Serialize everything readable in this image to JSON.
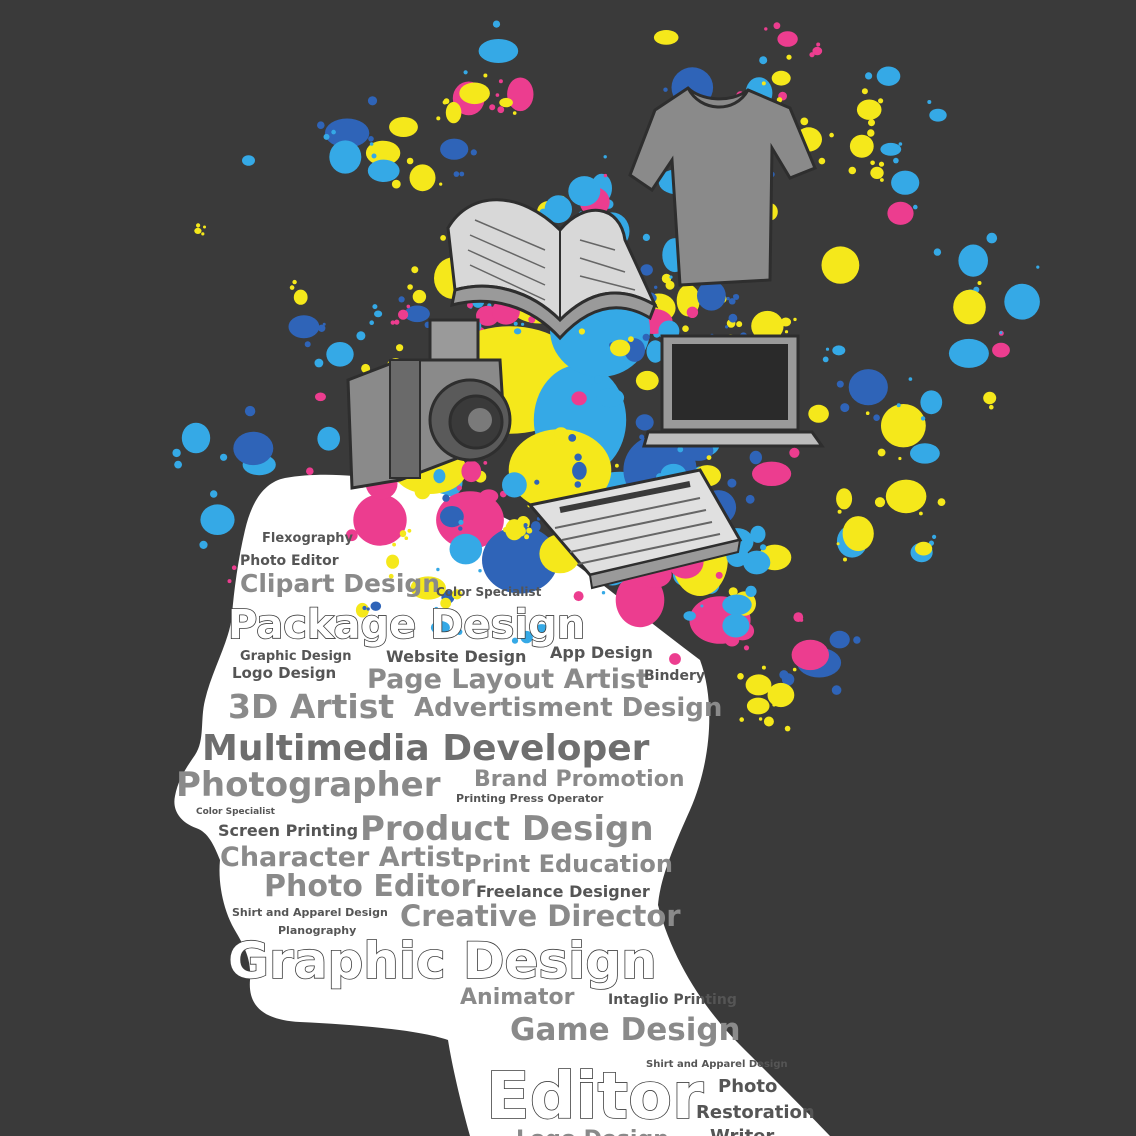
{
  "colors": {
    "background": "#3a3a3a",
    "head": "#ffffff",
    "cyan": "#35a9e6",
    "magenta": "#ec3d8f",
    "yellow": "#f5e81b",
    "blue": "#2f64b8",
    "grey_object": "#8a8a8a"
  },
  "icons": [
    "tshirt-icon",
    "book-icon",
    "camera-icon",
    "laptop-icon",
    "newspaper-icon"
  ],
  "words": {
    "flexography": "Flexography",
    "photo_editor_small": "Photo Editor",
    "clipart_design": "Clipart Design",
    "color_specialist_1": "Color Specialist",
    "package_design": "Package Design",
    "graphic_design_small": "Graphic Design",
    "website_design": "Website Design",
    "app_design": "App Design",
    "logo_design": "Logo Design",
    "page_layout_artist": "Page Layout Artist",
    "bindery": "Bindery",
    "three_d_artist": "3D Artist",
    "advertisment_design": "Advertisment Design",
    "multimedia_developer": "Multimedia Developer",
    "photographer": "Photographer",
    "brand_promotion": "Brand Promotion",
    "printing_press_operator": "Printing Press Operator",
    "color_specialist_2": "Color Specialist",
    "screen_printing": "Screen Printing",
    "product_design": "Product Design",
    "character_artist": "Character Artist",
    "print_education": "Print Education",
    "photo_editor_large": "Photo Editor",
    "freelance_designer": "Freelance Designer",
    "shirt_apparel_1": "Shirt and Apparel Design",
    "creative_director": "Creative Director",
    "planography": "Planography",
    "graphic_design_large": "Graphic Design",
    "animator": "Animator",
    "intaglio_printing": "Intaglio Printing",
    "game_design": "Game Design",
    "shirt_apparel_2": "Shirt and Apparel Design",
    "editor": "Editor",
    "photo": "Photo",
    "restoration": "Restoration",
    "logo_design_bottom": "Logo Design",
    "writer": "Writer"
  }
}
